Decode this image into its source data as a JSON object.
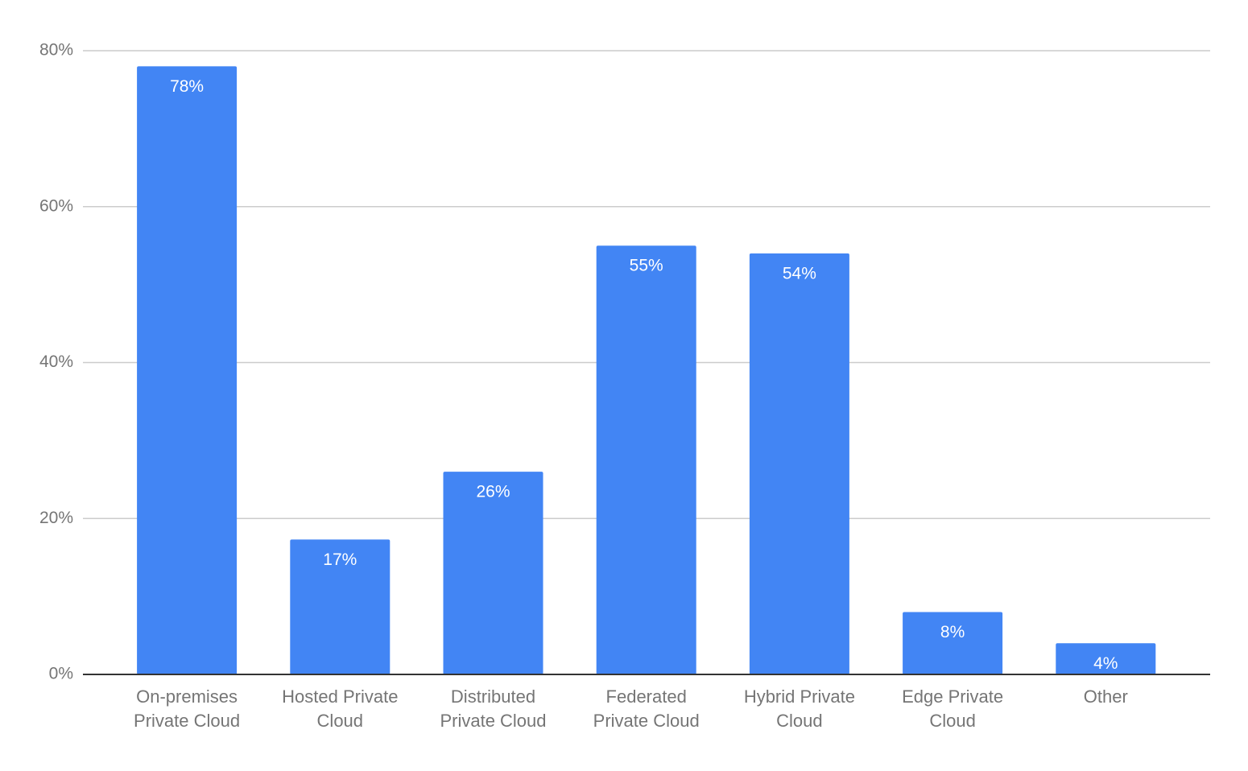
{
  "chart_data": {
    "type": "bar",
    "categories": [
      "On-premises Private Cloud",
      "Hosted Private Cloud",
      "Distributed Private Cloud",
      "Federated Private Cloud",
      "Hybrid Private Cloud",
      "Edge Private Cloud",
      "Other"
    ],
    "values": [
      78,
      17.3,
      26,
      55,
      54,
      8,
      4
    ],
    "value_labels": [
      "78%",
      "17%",
      "26%",
      "55%",
      "54%",
      "8%",
      "4%"
    ],
    "color": "#4285f4",
    "ylim": [
      0,
      80
    ],
    "yticks": [
      {
        "value": 0,
        "label": "0%"
      },
      {
        "value": 20,
        "label": "20%"
      },
      {
        "value": 40,
        "label": "40%"
      },
      {
        "value": 60,
        "label": "60%"
      },
      {
        "value": 80,
        "label": "80%"
      }
    ],
    "grid": true
  }
}
